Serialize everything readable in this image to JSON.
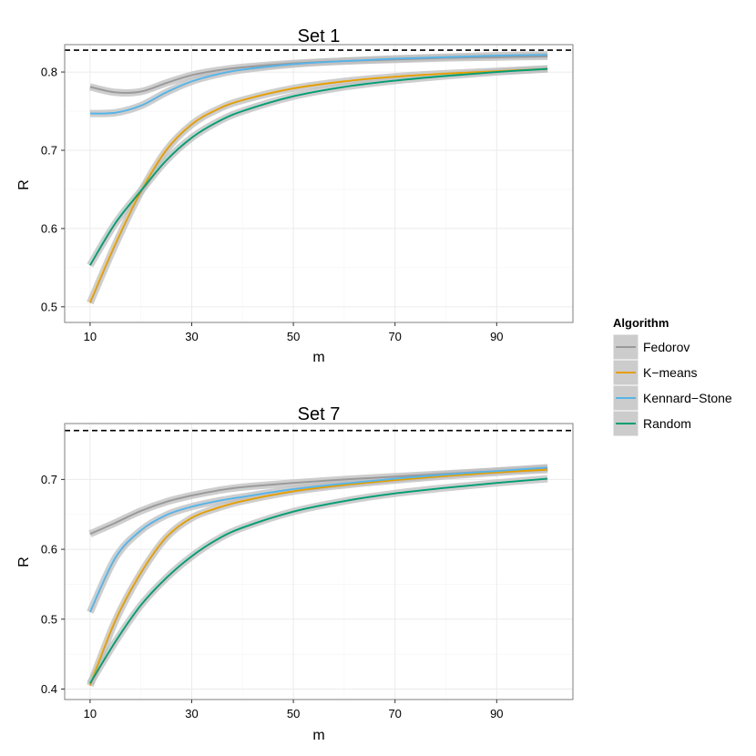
{
  "chart_data": [
    {
      "type": "line",
      "title": "Set 1",
      "xlabel": "m",
      "ylabel": "R",
      "xlim": [
        5,
        105
      ],
      "ylim": [
        0.48,
        0.835
      ],
      "xticks": [
        10,
        30,
        50,
        70,
        90
      ],
      "yticks": [
        0.5,
        0.6,
        0.7,
        0.8
      ],
      "ytick_labels": [
        "0.5",
        "0.6",
        "0.7",
        "0.8"
      ],
      "reference_line": 0.828,
      "grid": true,
      "x": [
        10,
        15,
        20,
        25,
        30,
        35,
        40,
        50,
        60,
        70,
        80,
        90,
        100
      ],
      "series": [
        {
          "name": "Fedorov",
          "values": [
            0.781,
            0.774,
            0.775,
            0.786,
            0.796,
            0.802,
            0.806,
            0.811,
            0.814,
            0.816,
            0.818,
            0.819,
            0.82
          ]
        },
        {
          "name": "K-means",
          "values": [
            0.505,
            0.58,
            0.647,
            0.7,
            0.733,
            0.752,
            0.764,
            0.779,
            0.788,
            0.794,
            0.798,
            0.801,
            0.804
          ]
        },
        {
          "name": "Kennard-Stone",
          "values": [
            0.747,
            0.748,
            0.757,
            0.774,
            0.788,
            0.797,
            0.803,
            0.81,
            0.814,
            0.817,
            0.819,
            0.821,
            0.822
          ]
        },
        {
          "name": "Random",
          "values": [
            0.553,
            0.607,
            0.648,
            0.687,
            0.716,
            0.736,
            0.75,
            0.769,
            0.781,
            0.789,
            0.795,
            0.8,
            0.804
          ]
        }
      ]
    },
    {
      "type": "line",
      "title": "Set 7",
      "xlabel": "m",
      "ylabel": "R",
      "xlim": [
        5,
        105
      ],
      "ylim": [
        0.385,
        0.78
      ],
      "xticks": [
        10,
        30,
        50,
        70,
        90
      ],
      "yticks": [
        0.4,
        0.5,
        0.6,
        0.7
      ],
      "ytick_labels": [
        "0.4",
        "0.5",
        "0.6",
        "0.7"
      ],
      "reference_line": 0.77,
      "grid": true,
      "x": [
        10,
        15,
        20,
        25,
        30,
        35,
        40,
        50,
        60,
        70,
        80,
        90,
        100
      ],
      "series": [
        {
          "name": "Fedorov",
          "values": [
            0.622,
            0.638,
            0.655,
            0.668,
            0.677,
            0.684,
            0.689,
            0.695,
            0.7,
            0.704,
            0.708,
            0.712,
            0.716
          ]
        },
        {
          "name": "K-means",
          "values": [
            0.405,
            0.498,
            0.566,
            0.617,
            0.645,
            0.659,
            0.669,
            0.683,
            0.692,
            0.699,
            0.705,
            0.71,
            0.714
          ]
        },
        {
          "name": "Kennard-Stone",
          "values": [
            0.51,
            0.588,
            0.627,
            0.649,
            0.661,
            0.669,
            0.675,
            0.686,
            0.694,
            0.701,
            0.707,
            0.712,
            0.717
          ]
        },
        {
          "name": "Random",
          "values": [
            0.408,
            0.468,
            0.52,
            0.559,
            0.59,
            0.614,
            0.631,
            0.654,
            0.669,
            0.68,
            0.688,
            0.695,
            0.701
          ]
        }
      ]
    }
  ],
  "legend": {
    "title": "Algorithm",
    "position": "right",
    "items": [
      {
        "label": "Fedorov",
        "color": "#999999"
      },
      {
        "label": "K−means",
        "color": "#E69F00"
      },
      {
        "label": "Kennard−Stone",
        "color": "#56B4E9"
      },
      {
        "label": "Random",
        "color": "#009E73"
      }
    ]
  },
  "colors": {
    "panel_background": "#ffffff",
    "panel_border": "#7f7f7f",
    "grid_major": "#ebebeb",
    "grid_minor": "#f5f5f5",
    "confidence_band": "#bdbdbd",
    "reference_line": "#000000",
    "legend_key_background": "#cccccc"
  }
}
